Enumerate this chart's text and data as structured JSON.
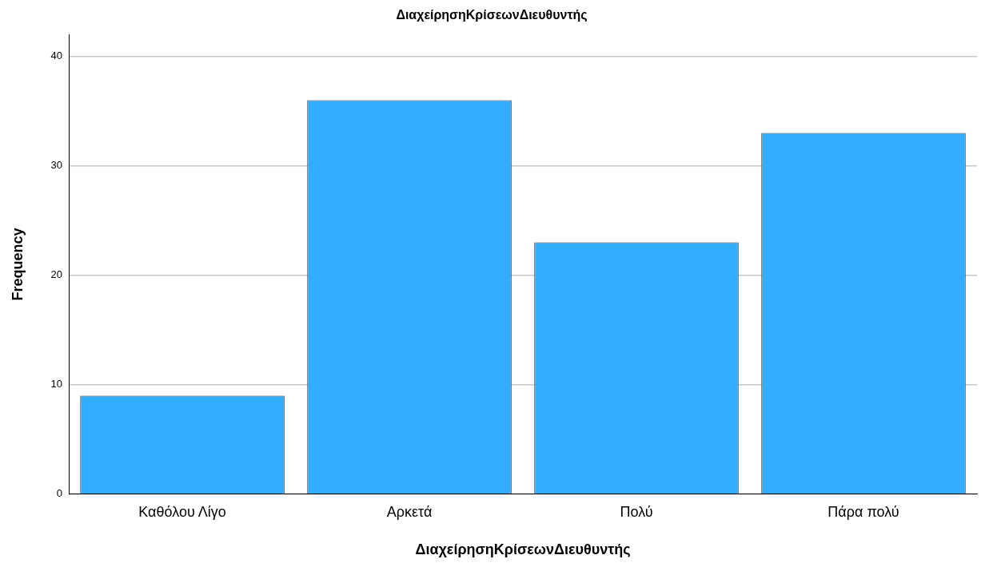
{
  "chart_data": {
    "type": "bar",
    "title": "ΔιαχείρησηΚρίσεωνΔιευθυντής",
    "xlabel": "ΔιαχείρησηΚρίσεωνΔιευθυντής",
    "ylabel": "Frequency",
    "categories": [
      "Καθόλου Λίγο",
      "Αρκετά",
      "Πολύ",
      "Πάρα πολύ"
    ],
    "values": [
      9,
      36,
      23,
      33
    ],
    "color": "#33adff",
    "ylim": [
      0,
      42
    ],
    "yticks": [
      0,
      10,
      20,
      30,
      40
    ],
    "grid": "y",
    "legend": false
  }
}
